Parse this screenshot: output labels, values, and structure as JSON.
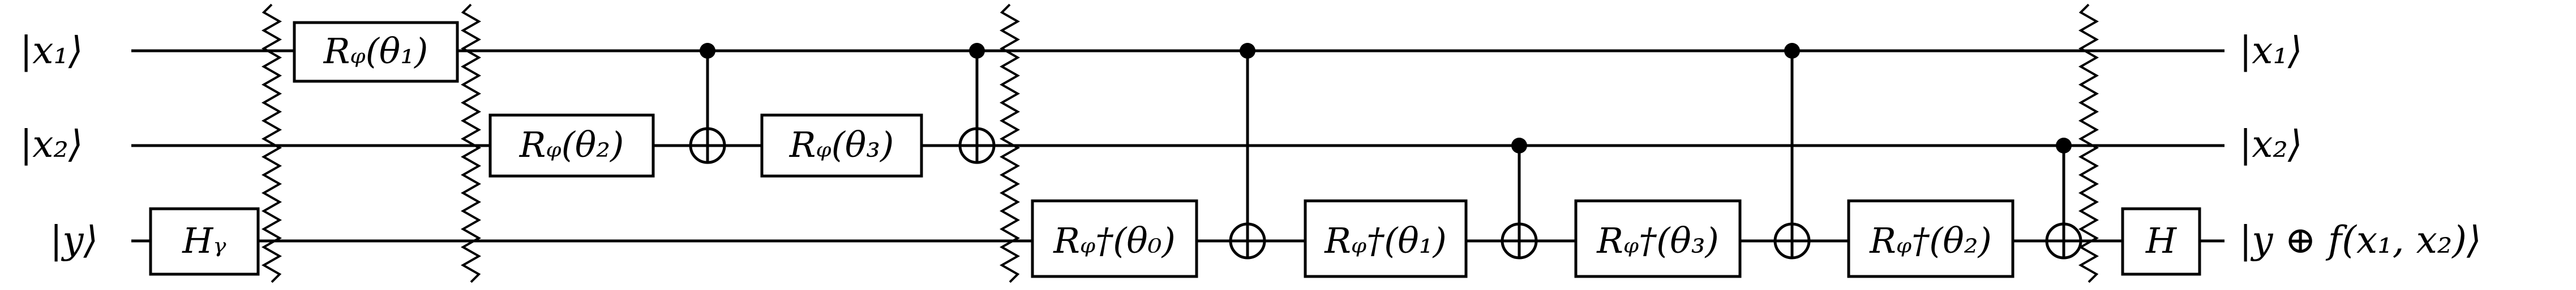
{
  "inputs": [
    "|x₁⟩",
    "|x₂⟩",
    "|y⟩"
  ],
  "outputs": [
    "|x₁⟩",
    "|x₂⟩",
    "|y ⊕ f(x₁, x₂)⟩"
  ],
  "gates": {
    "hy": "Hᵧ",
    "rz_t1": "Rᵩ(θ₁)",
    "rz_t2": "Rᵩ(θ₂)",
    "rz_t3": "Rᵩ(θ₃)",
    "rzd_t0": "Rᵩ†(θ₀)",
    "rzd_t1": "Rᵩ†(θ₁)",
    "rzd_t3": "Rᵩ†(θ₃)",
    "rzd_t2": "Rᵩ†(θ₂)",
    "h": "H"
  }
}
